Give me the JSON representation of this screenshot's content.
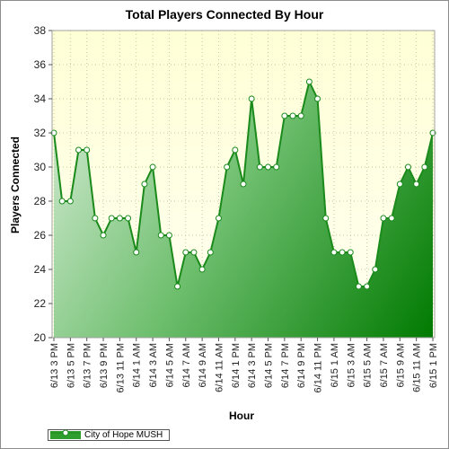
{
  "chart_data": {
    "type": "area",
    "title": "Total Players Connected By Hour",
    "xlabel": "Hour",
    "ylabel": "Players Connected",
    "ylim": [
      20,
      38
    ],
    "yticks": [
      20,
      22,
      24,
      26,
      28,
      30,
      32,
      34,
      36,
      38
    ],
    "grid": true,
    "legend_position": "bottom-left",
    "x": [
      "6/13 3 PM",
      "6/13 4 PM",
      "6/13 5 PM",
      "6/13 6 PM",
      "6/13 7 PM",
      "6/13 8 PM",
      "6/13 9 PM",
      "6/13 10 PM",
      "6/13 11 PM",
      "6/14 12 AM",
      "6/14 1 AM",
      "6/14 2 AM",
      "6/14 3 AM",
      "6/14 4 AM",
      "6/14 5 AM",
      "6/14 6 AM",
      "6/14 7 AM",
      "6/14 8 AM",
      "6/14 9 AM",
      "6/14 10 AM",
      "6/14 11 AM",
      "6/14 12 PM",
      "6/14 1 PM",
      "6/14 2 PM",
      "6/14 3 PM",
      "6/14 4 PM",
      "6/14 5 PM",
      "6/14 6 PM",
      "6/14 7 PM",
      "6/14 8 PM",
      "6/14 9 PM",
      "6/14 10 PM",
      "6/14 11 PM",
      "6/15 12 AM",
      "6/15 1 AM",
      "6/15 2 AM",
      "6/15 3 AM",
      "6/15 4 AM",
      "6/15 5 AM",
      "6/15 6 AM",
      "6/15 7 AM",
      "6/15 8 AM",
      "6/15 9 AM",
      "6/15 10 AM",
      "6/15 11 AM",
      "6/15 12 PM",
      "6/15 1 PM"
    ],
    "xtick_labels": [
      "6/13 3 PM",
      "6/13 5 PM",
      "6/13 7 PM",
      "6/13 9 PM",
      "6/13 11 PM",
      "6/14 1 AM",
      "6/14 3 AM",
      "6/14 5 AM",
      "6/14 7 AM",
      "6/14 9 AM",
      "6/14 11 AM",
      "6/14 1 PM",
      "6/14 3 PM",
      "6/14 5 PM",
      "6/14 7 PM",
      "6/14 9 PM",
      "6/14 11 PM",
      "6/15 1 AM",
      "6/15 3 AM",
      "6/15 5 AM",
      "6/15 7 AM",
      "6/15 9 AM",
      "6/15 11 AM",
      "6/15 1 PM"
    ],
    "series": [
      {
        "name": "City of Hope MUSH",
        "values": [
          32,
          28,
          28,
          31,
          31,
          27,
          26,
          27,
          27,
          27,
          25,
          29,
          30,
          26,
          26,
          23,
          25,
          25,
          24,
          25,
          27,
          30,
          31,
          29,
          34,
          30,
          30,
          30,
          33,
          33,
          33,
          35,
          34,
          27,
          25,
          25,
          25,
          23,
          23,
          24,
          27,
          27,
          29,
          30,
          29,
          30,
          32
        ]
      }
    ],
    "colors": {
      "plot_background": "#ffffdc",
      "line": "#1a8a1a",
      "fill_light": "#d2ead2",
      "fill_dark": "#007a00",
      "grid": "#c8c8a0"
    }
  }
}
